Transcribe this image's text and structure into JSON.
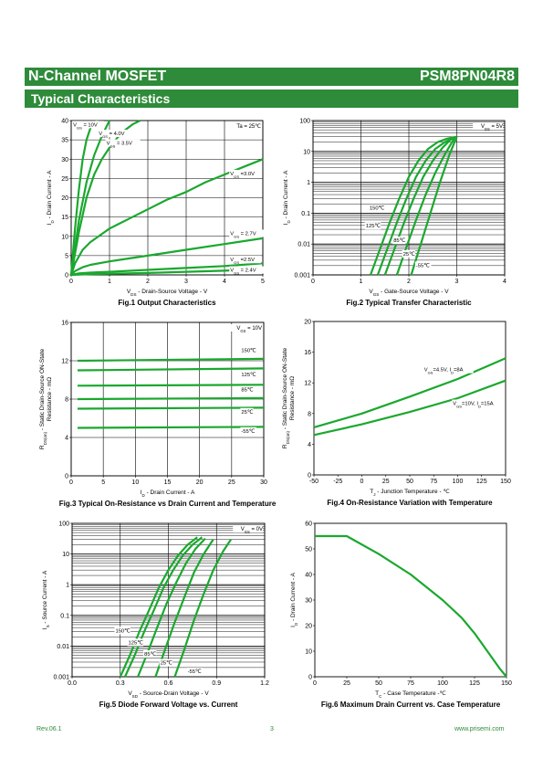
{
  "header": {
    "title": "N-Channel MOSFET",
    "part_number": "PSM8PN04R8",
    "section": "Typical Characteristics"
  },
  "footer": {
    "revision": "Rev.06.1",
    "page": "3",
    "website": "www.prisemi.com"
  },
  "colors": {
    "accent": "#2e8b3a",
    "curve": "#1aa82e"
  },
  "chart_data": [
    {
      "id": "fig1",
      "type": "line",
      "title": "Fig.1 Output Characteristics",
      "xlabel": "V_DS - Drain-Source Voltage - V",
      "ylabel": "I_D - Drain Current - A",
      "xlim": [
        0,
        5
      ],
      "ylim": [
        0,
        40
      ],
      "yscale": "linear",
      "grid": true,
      "xticks": [
        0,
        1,
        2,
        3,
        4,
        5
      ],
      "yticks": [
        0,
        5,
        10,
        15,
        20,
        25,
        30,
        35,
        40
      ],
      "note": "Ta = 25℃",
      "series": [
        {
          "name": "V_GS = 10V",
          "x": [
            0,
            0.1,
            0.2,
            0.3,
            0.4,
            0.5,
            0.6,
            0.7
          ],
          "y": [
            0,
            12,
            22,
            30,
            35,
            38,
            39.5,
            40
          ]
        },
        {
          "name": "V_GS = 4.0V",
          "x": [
            0,
            0.2,
            0.4,
            0.6,
            0.8,
            1.0
          ],
          "y": [
            0,
            14,
            24,
            31,
            36,
            40
          ]
        },
        {
          "name": "V_GS = 3.5V",
          "x": [
            0,
            0.2,
            0.4,
            0.6,
            0.8,
            1.0,
            1.2,
            1.4,
            1.6,
            1.8
          ],
          "y": [
            0,
            11,
            20,
            26,
            30,
            33,
            35.5,
            37.5,
            39,
            40
          ]
        },
        {
          "name": "V_GS =3.0V",
          "x": [
            0,
            0.1,
            0.3,
            0.5,
            1,
            1.5,
            2,
            2.5,
            3,
            3.5,
            4,
            4.5,
            5
          ],
          "y": [
            0,
            3,
            6.5,
            8.5,
            12,
            14.5,
            17,
            19.5,
            21.5,
            24,
            26,
            28,
            30
          ]
        },
        {
          "name": "V_GS = 2.7V",
          "x": [
            0,
            0.1,
            0.3,
            0.5,
            1,
            2,
            3,
            4,
            5
          ],
          "y": [
            0,
            1,
            2,
            2.6,
            3.5,
            5,
            6.5,
            8,
            9.5
          ]
        },
        {
          "name": "V_GS =2.5V",
          "x": [
            0,
            0.2,
            0.5,
            1,
            2,
            3,
            4,
            5
          ],
          "y": [
            0,
            0.4,
            0.6,
            0.8,
            1.3,
            1.8,
            2.3,
            3
          ]
        },
        {
          "name": "V_GS = 2.4V",
          "x": [
            0,
            0.5,
            1,
            2,
            3,
            4,
            5
          ],
          "y": [
            0,
            0.2,
            0.3,
            0.5,
            0.8,
            1.1,
            1.5
          ]
        }
      ],
      "labels": [
        {
          "text": "V_GS = 10V",
          "x": 0.05,
          "y": 38.5
        },
        {
          "text": "V_GS = 4.0V",
          "x": 0.72,
          "y": 36.2
        },
        {
          "text": "V_GS = 3.5V",
          "x": 0.92,
          "y": 33.7
        },
        {
          "text": "V_GS =3.0V",
          "x": 4.15,
          "y": 25.8
        },
        {
          "text": "V_GS = 2.7V",
          "x": 4.15,
          "y": 10.3
        },
        {
          "text": "V_GS =2.5V",
          "x": 4.15,
          "y": 3.5
        },
        {
          "text": "V_GS = 2.4V",
          "x": 4.15,
          "y": 0.8
        }
      ]
    },
    {
      "id": "fig2",
      "type": "line",
      "title": "Fig.2 Typical Transfer Characteristic",
      "xlabel": "V_GS - Gate-Source Voltage - V",
      "ylabel": "I_D - Drain Current - A",
      "xlim": [
        0,
        4
      ],
      "ylim": [
        0.001,
        100
      ],
      "yscale": "log",
      "grid": true,
      "xticks": [
        0,
        1,
        2,
        3,
        4
      ],
      "yticks": [
        0.001,
        0.01,
        0.1,
        1,
        10,
        100
      ],
      "yticklabels": [
        "0.001",
        "0.01",
        "0.1",
        "1",
        "10",
        "100"
      ],
      "note": "V_DS = 5V",
      "series": [
        {
          "name": "150℃",
          "x": [
            1.2,
            1.4,
            1.6,
            1.8,
            2.0,
            2.2,
            2.4,
            2.6,
            2.8,
            3.0
          ],
          "y": [
            0.001,
            0.007,
            0.05,
            0.3,
            1.5,
            5,
            12,
            20,
            26,
            30
          ]
        },
        {
          "name": "125℃",
          "x": [
            1.35,
            1.55,
            1.75,
            1.95,
            2.15,
            2.35,
            2.55,
            2.75,
            2.95
          ],
          "y": [
            0.001,
            0.007,
            0.05,
            0.3,
            1.5,
            5,
            12,
            20,
            28
          ]
        },
        {
          "name": "85℃",
          "x": [
            1.5,
            1.7,
            1.9,
            2.1,
            2.3,
            2.5,
            2.7,
            2.9
          ],
          "y": [
            0.001,
            0.007,
            0.05,
            0.3,
            1.5,
            5,
            13,
            27
          ]
        },
        {
          "name": "25℃",
          "x": [
            1.75,
            1.95,
            2.15,
            2.35,
            2.55,
            2.75,
            2.95
          ],
          "y": [
            0.001,
            0.008,
            0.06,
            0.4,
            2,
            8,
            27
          ]
        },
        {
          "name": "-55℃",
          "x": [
            2.05,
            2.25,
            2.45,
            2.65,
            2.85,
            3.0
          ],
          "y": [
            0.001,
            0.01,
            0.1,
            1,
            8,
            30
          ]
        }
      ],
      "labels": [
        {
          "text": "150℃",
          "x": 1.18,
          "y": 0.13
        },
        {
          "text": "125℃",
          "x": 1.1,
          "y": 0.034
        },
        {
          "text": "85℃",
          "x": 1.68,
          "y": 0.0115
        },
        {
          "text": "25℃",
          "x": 1.88,
          "y": 0.0042
        },
        {
          "text": "-55℃",
          "x": 2.15,
          "y": 0.0018
        }
      ]
    },
    {
      "id": "fig3",
      "type": "line",
      "title": "Fig.3 Typical On-Resistance  vs Drain Current and Temperature",
      "xlabel": "I_D - Drain Current - A",
      "ylabel": "R_DS(on) - Static Drain-Source ON-State Resistance - mΩ",
      "xlim": [
        0,
        30
      ],
      "ylim": [
        0,
        16
      ],
      "yscale": "linear",
      "grid": true,
      "xticks": [
        0,
        5,
        10,
        15,
        20,
        25,
        30
      ],
      "yticks": [
        0,
        4,
        8,
        12,
        16
      ],
      "note": "V_GS = 10V",
      "series": [
        {
          "name": "150℃",
          "x": [
            1,
            30
          ],
          "y": [
            12.0,
            12.2
          ]
        },
        {
          "name": "125℃",
          "x": [
            1,
            30
          ],
          "y": [
            11.0,
            11.2
          ]
        },
        {
          "name": "85℃",
          "x": [
            1,
            30
          ],
          "y": [
            9.4,
            9.5
          ]
        },
        {
          "name": "",
          "x": [
            1,
            30
          ],
          "y": [
            8.0,
            8.1
          ]
        },
        {
          "name": "25℃",
          "x": [
            1,
            30
          ],
          "y": [
            7.0,
            7.1
          ]
        },
        {
          "name": "-55℃",
          "x": [
            1,
            30
          ],
          "y": [
            5.0,
            5.1
          ]
        }
      ],
      "labels": [
        {
          "text": "150℃",
          "x": 26.5,
          "y": 12.9
        },
        {
          "text": "125℃",
          "x": 26.5,
          "y": 10.4
        },
        {
          "text": "85℃",
          "x": 26.5,
          "y": 8.8
        },
        {
          "text": "25℃",
          "x": 26.5,
          "y": 6.5
        },
        {
          "text": "-55℃",
          "x": 26.5,
          "y": 4.5
        }
      ]
    },
    {
      "id": "fig4",
      "type": "line",
      "title": "Fig.4 On-Resistance Variation with Temperature",
      "xlabel": "T_J - Junction Temperature - ℃",
      "ylabel": "R_DS(on) - Static Drain-Source ON-State Resistance - mΩ",
      "xlim": [
        -50,
        150
      ],
      "ylim": [
        0,
        20
      ],
      "yscale": "linear",
      "grid": false,
      "xticks": [
        -50,
        -25,
        0,
        25,
        50,
        75,
        100,
        125,
        150
      ],
      "yticks": [
        0,
        4,
        8,
        12,
        16,
        20
      ],
      "series": [
        {
          "name": "V_GS=4.5V, I_D=8A",
          "x": [
            -50,
            0,
            50,
            100,
            150
          ],
          "y": [
            6.2,
            8.0,
            10.2,
            12.5,
            15.2
          ]
        },
        {
          "name": "V_GS=10V, I_D=15A",
          "x": [
            -50,
            0,
            50,
            100,
            150
          ],
          "y": [
            5.2,
            6.6,
            8.2,
            10.0,
            12.3
          ]
        }
      ],
      "labels": [
        {
          "text": "V_GS=4.5V, I_D=8A",
          "x": 65,
          "y": 13.5
        },
        {
          "text": "V_GS=10V, I_D=15A",
          "x": 95,
          "y": 9.1
        }
      ]
    },
    {
      "id": "fig5",
      "type": "line",
      "title": "Fig.5 Diode Forward Voltage vs. Current",
      "xlabel": "V_SD - Source-Drain Voltage - V",
      "ylabel": "I_S - Source Current - A",
      "xlim": [
        0,
        1.2
      ],
      "ylim": [
        0.001,
        100
      ],
      "yscale": "log",
      "grid": true,
      "xticks": [
        0,
        0.3,
        0.6,
        0.9,
        1.2
      ],
      "xticklabels": [
        "0.0",
        "0.3",
        "0.6",
        "0.9",
        "1.2"
      ],
      "yticks": [
        0.001,
        0.01,
        0.1,
        1,
        10,
        100
      ],
      "yticklabels": [
        "0.001",
        "0.01",
        "0.1",
        "1",
        "10",
        "100"
      ],
      "note": "V_GS = 0V",
      "series": [
        {
          "name": "150℃",
          "x": [
            0.3,
            0.36,
            0.42,
            0.48,
            0.54,
            0.6,
            0.66,
            0.72,
            0.78
          ],
          "y": [
            0.001,
            0.005,
            0.03,
            0.15,
            0.8,
            3,
            9,
            20,
            35
          ]
        },
        {
          "name": "125℃",
          "x": [
            0.33,
            0.39,
            0.45,
            0.51,
            0.57,
            0.63,
            0.69,
            0.75,
            0.81
          ],
          "y": [
            0.001,
            0.005,
            0.03,
            0.15,
            0.8,
            3,
            9,
            20,
            35
          ]
        },
        {
          "name": "85℃",
          "x": [
            0.41,
            0.47,
            0.53,
            0.59,
            0.65,
            0.71,
            0.77,
            0.83
          ],
          "y": [
            0.001,
            0.006,
            0.04,
            0.25,
            1.2,
            5,
            15,
            32
          ]
        },
        {
          "name": "25℃",
          "x": [
            0.52,
            0.58,
            0.64,
            0.7,
            0.76,
            0.82,
            0.88
          ],
          "y": [
            0.001,
            0.008,
            0.06,
            0.4,
            2.5,
            10,
            30
          ]
        },
        {
          "name": "-55℃",
          "x": [
            0.64,
            0.7,
            0.76,
            0.82,
            0.88,
            0.94,
            0.99
          ],
          "y": [
            0.001,
            0.008,
            0.07,
            0.5,
            3,
            12,
            30
          ]
        }
      ],
      "labels": [
        {
          "text": "150℃",
          "x": 0.27,
          "y": 0.028
        },
        {
          "text": "125℃",
          "x": 0.35,
          "y": 0.0115
        },
        {
          "text": "85℃",
          "x": 0.45,
          "y": 0.0048
        },
        {
          "text": "25℃",
          "x": 0.55,
          "y": 0.0025
        },
        {
          "text": "-55℃",
          "x": 0.72,
          "y": 0.0013
        }
      ]
    },
    {
      "id": "fig6",
      "type": "line",
      "title": "Fig.6 Maximum Drain Current vs. Case Temperature",
      "xlabel": "T_C - Case Temperature -℃",
      "ylabel": "I_D - Drain Current - A",
      "xlim": [
        0,
        150
      ],
      "ylim": [
        0,
        60
      ],
      "yscale": "linear",
      "grid": false,
      "xticks": [
        0,
        25,
        50,
        75,
        100,
        125,
        150
      ],
      "yticks": [
        0,
        10,
        20,
        30,
        40,
        50,
        60
      ],
      "series": [
        {
          "name": "",
          "x": [
            0,
            25,
            50,
            75,
            100,
            115,
            125,
            135,
            145,
            150
          ],
          "y": [
            55,
            55,
            48,
            40,
            30,
            23,
            17,
            10,
            3,
            0
          ]
        }
      ],
      "labels": []
    }
  ]
}
